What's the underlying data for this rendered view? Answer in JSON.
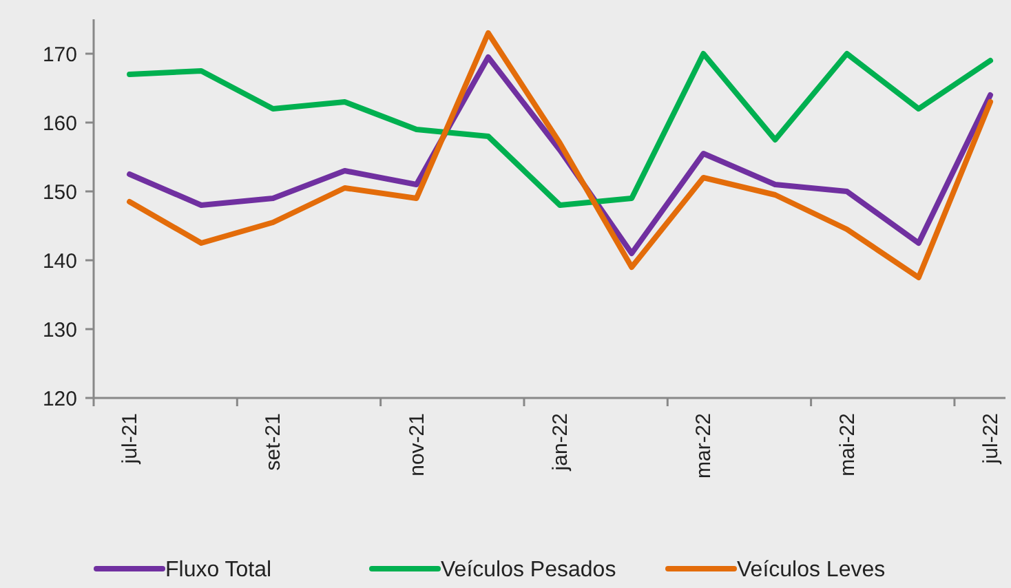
{
  "chart_data": {
    "type": "line",
    "categories": [
      "jul-21",
      null,
      "set-21",
      null,
      "nov-21",
      null,
      "jan-22",
      null,
      "mar-22",
      null,
      "mai-22",
      null,
      "jul-22"
    ],
    "ylim": [
      120,
      175
    ],
    "yticks": [
      120,
      130,
      140,
      150,
      160,
      170
    ],
    "grid": false,
    "legend": "bottom",
    "line_style": "solid",
    "marker": "none",
    "series": [
      {
        "name": "Fluxo Total",
        "color": "#7030a0",
        "values": [
          152.5,
          148,
          149,
          153,
          151,
          169.5,
          156,
          141,
          155.5,
          151,
          150,
          142.5,
          164
        ]
      },
      {
        "name": "Veículos Pesados",
        "color": "#00b050",
        "values": [
          167,
          167.5,
          162,
          163,
          159,
          158,
          148,
          149,
          170,
          157.5,
          170,
          162,
          169
        ]
      },
      {
        "name": "Veículos Leves",
        "color": "#e36c0a",
        "values": [
          148.5,
          142.5,
          145.5,
          150.5,
          149,
          173,
          157,
          139,
          152,
          149.5,
          144.5,
          137.5,
          163
        ]
      }
    ]
  }
}
